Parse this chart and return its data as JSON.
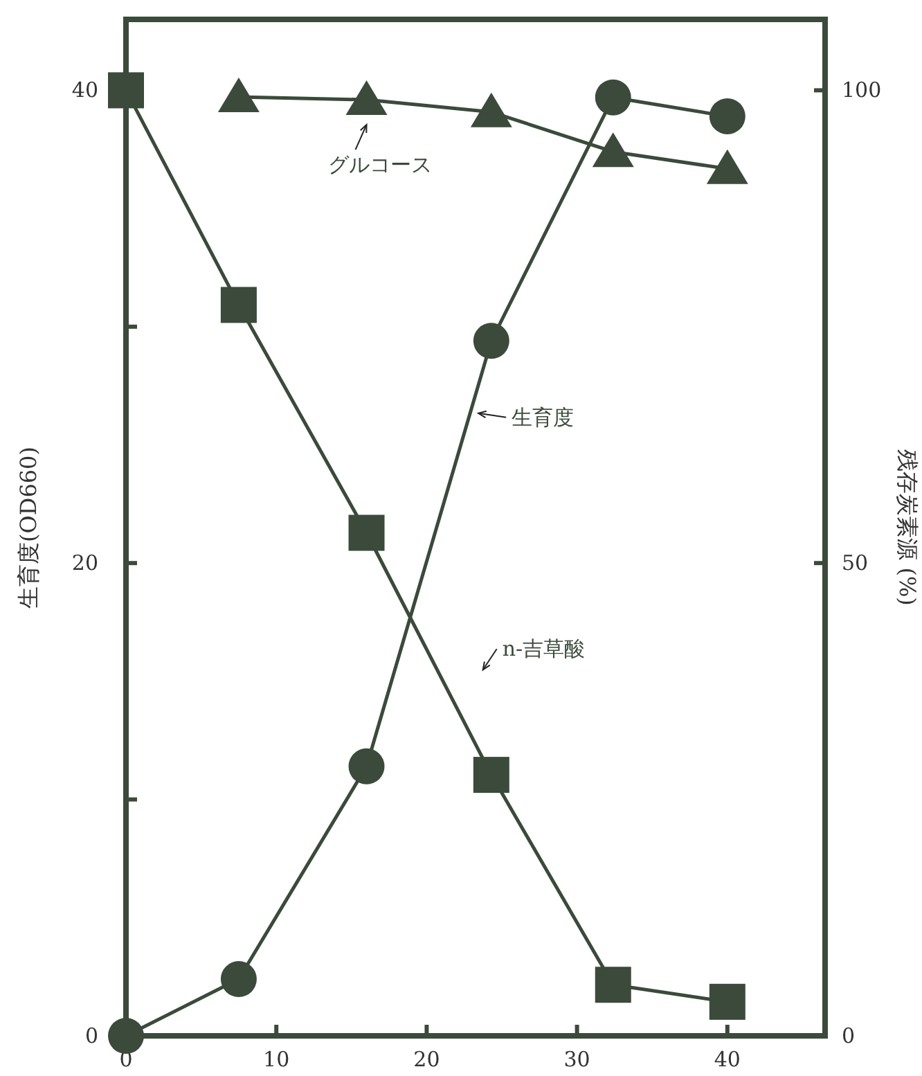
{
  "chart_data": {
    "type": "line",
    "ylabel": "生育度(OD660)",
    "y2label": "残存炭素源 (%)",
    "xlim": [
      0,
      46.5
    ],
    "xticks": [
      0,
      10,
      20,
      30,
      40
    ],
    "ylim": [
      0,
      43
    ],
    "yticks": [
      0,
      {
        "value": 10,
        "label": null
      },
      20,
      {
        "value": 30,
        "label": null
      },
      40
    ],
    "y2lim": [
      0,
      107.5
    ],
    "y2ticks": [
      0,
      50,
      100
    ],
    "grid": false,
    "legend": false,
    "line_style": "solid",
    "series": [
      {
        "name": "生育度",
        "color": "#3b4a3b",
        "marker": "circle",
        "x": [
          0,
          7.5,
          16,
          24.3,
          32.4,
          40
        ],
        "values": [
          0,
          2.4,
          11.4,
          29.4,
          39.7,
          38.9
        ]
      },
      {
        "name": "n-吉草酸",
        "color": "#3b4a3b",
        "marker": "square",
        "axis": "y2",
        "x": [
          0,
          7.5,
          16,
          24.3,
          32.4,
          40
        ],
        "values": [
          100,
          77.3,
          53.2,
          27.6,
          5.4,
          3.6
        ]
      },
      {
        "name": "グルコース",
        "color": "#3b4a3b",
        "marker": "triangle",
        "axis": "y2",
        "x": [
          7.5,
          16,
          24.3,
          32.4,
          40
        ],
        "values": [
          99.3,
          99,
          97.7,
          93.5,
          91.7
        ]
      }
    ]
  }
}
